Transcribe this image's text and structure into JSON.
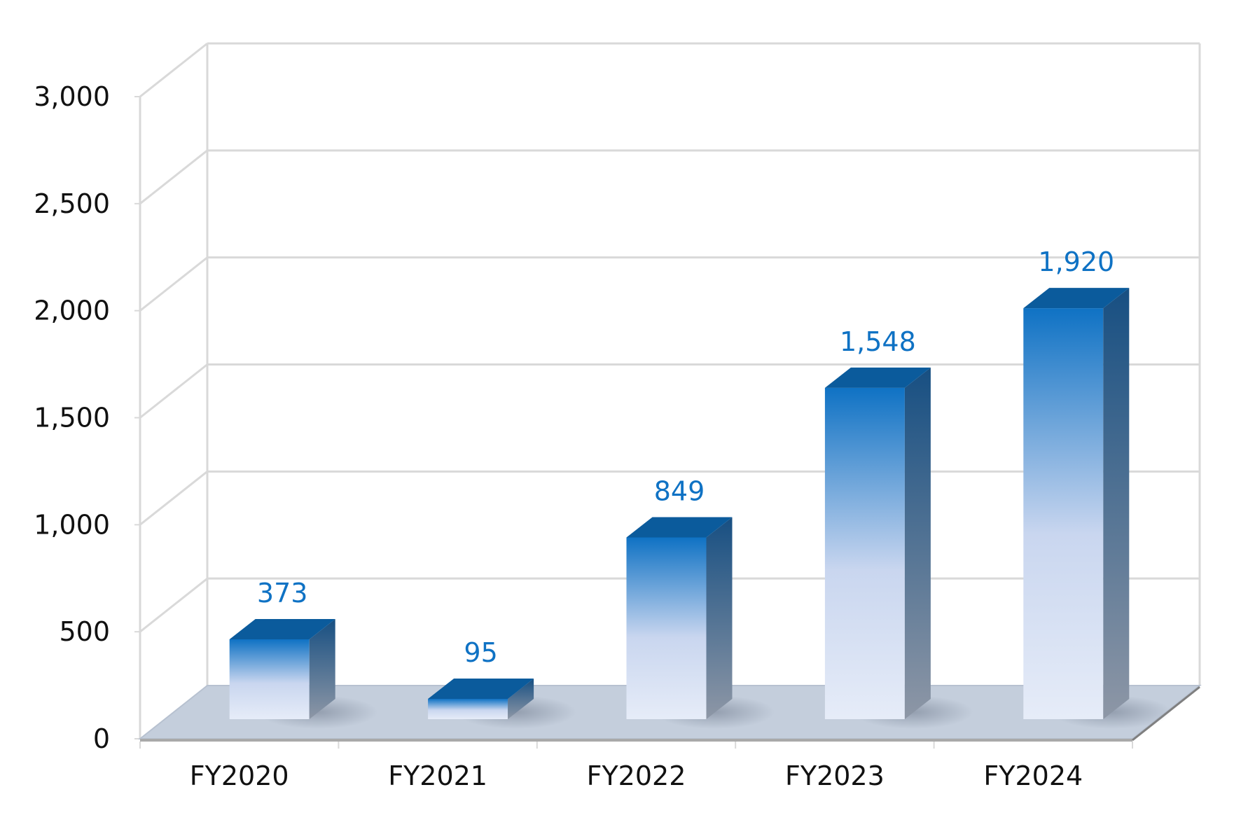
{
  "chart_data": {
    "type": "bar",
    "title": "",
    "xlabel": "",
    "ylabel": "",
    "categories": [
      "FY2020",
      "FY2021",
      "FY2022",
      "FY2023",
      "FY2024"
    ],
    "series": [
      {
        "values": [
          373,
          95,
          849,
          1548,
          1920
        ]
      }
    ],
    "data_labels": [
      "373",
      "95",
      "849",
      "1,548",
      "1,920"
    ],
    "y_ticks": [
      0,
      500,
      1000,
      1500,
      2000,
      2500,
      3000
    ],
    "y_tick_labels": [
      "0",
      "500",
      "1,000",
      "1,500",
      "2,000",
      "2,500",
      "3,000"
    ],
    "ylim": [
      0,
      3000
    ],
    "grid": true,
    "legend": "none",
    "style": "3d-column",
    "colors": {
      "bar_top": "#0f72c4",
      "bar_bottom": "#e6ecf8",
      "bar_cap": "#0b5b9c",
      "bar_side_top": "#174f82",
      "bar_side_bottom": "#8e97a6",
      "floor": "#c4cedc",
      "gridline": "#d9d9d9",
      "data_label": "#0f72c4",
      "tick_label": "#111111"
    }
  }
}
